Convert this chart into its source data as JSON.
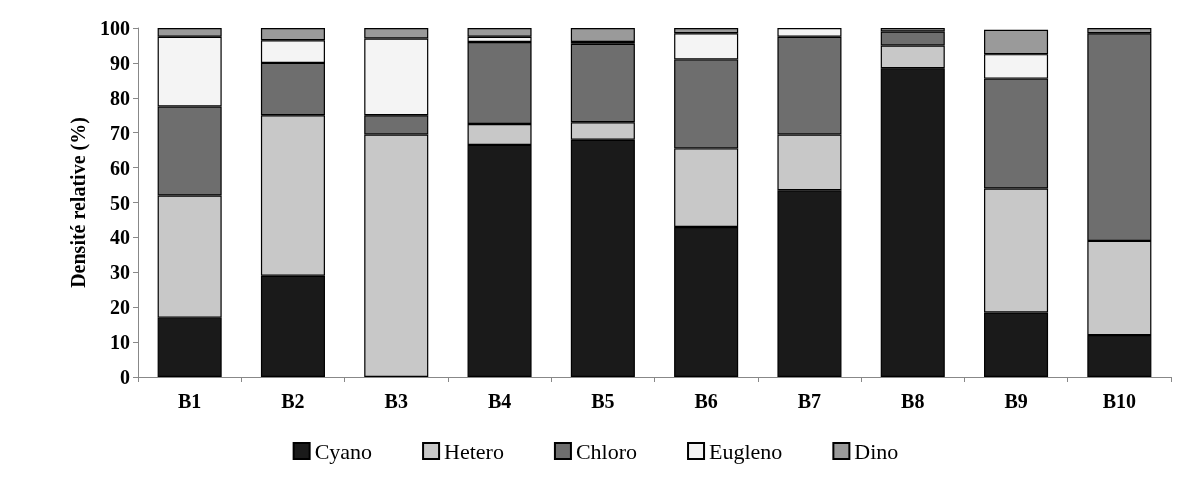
{
  "chart_data": {
    "type": "bar",
    "stacked": true,
    "ylabel": "Densité relative (%)",
    "categories": [
      "B1",
      "B2",
      "B3",
      "B4",
      "B5",
      "B6",
      "B7",
      "B8",
      "B9",
      "B10"
    ],
    "series": [
      {
        "name": "Cyano",
        "color": "#1a1a1a",
        "values": [
          17,
          29,
          0,
          66.5,
          68,
          43,
          53.5,
          88.5,
          18.5,
          12
        ]
      },
      {
        "name": "Hetero",
        "color": "#c8c8c8",
        "values": [
          35,
          46,
          69.5,
          6,
          5,
          22.5,
          16,
          6.5,
          35.5,
          27
        ]
      },
      {
        "name": "Chloro",
        "color": "#6e6e6e",
        "values": [
          25.5,
          15,
          5.5,
          23.5,
          22.5,
          25.5,
          28,
          4,
          31.5,
          59.5
        ]
      },
      {
        "name": "Eugleno",
        "color": "#f4f4f4",
        "values": [
          20,
          6.5,
          22,
          1.5,
          0.5,
          7.5,
          2.5,
          0,
          7,
          0
        ]
      },
      {
        "name": "Dino",
        "color": "#9a9a9a",
        "values": [
          2.5,
          3.5,
          3,
          2.5,
          4,
          1.5,
          0,
          1,
          7,
          1.5
        ]
      }
    ],
    "ylim": [
      0,
      100
    ],
    "yticks": [
      0,
      10,
      20,
      30,
      40,
      50,
      60,
      70,
      80,
      90,
      100
    ],
    "grid": false,
    "legend": "bottom"
  }
}
